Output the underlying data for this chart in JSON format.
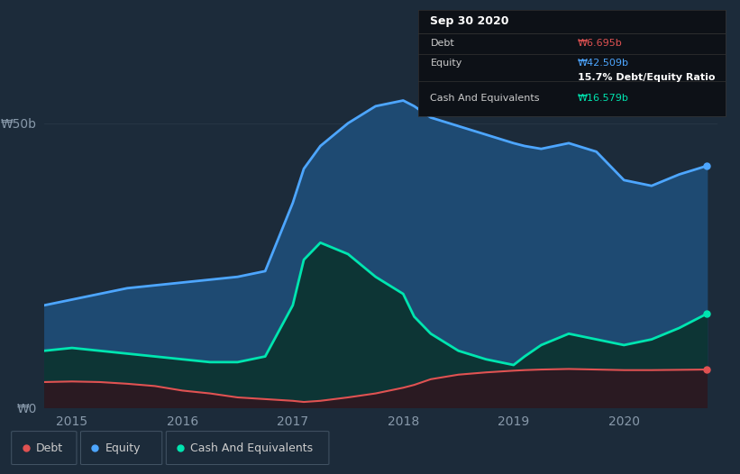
{
  "background_color": "#1c2b3a",
  "chart_bg_color": "#1c2b3a",
  "ylabel_50b": "₩50b",
  "ylabel_0": "₩0",
  "xlabel_ticks": [
    2015,
    2016,
    2017,
    2018,
    2019,
    2020
  ],
  "ylim": [
    0,
    60
  ],
  "tooltip": {
    "date": "Sep 30 2020",
    "debt_label": "Debt",
    "debt_value": "₩6.695b",
    "equity_label": "Equity",
    "equity_value": "₩42.509b",
    "ratio": "15.7% Debt/Equity Ratio",
    "cash_label": "Cash And Equivalents",
    "cash_value": "₩16.579b"
  },
  "legend": [
    {
      "label": "Debt",
      "color": "#e05252"
    },
    {
      "label": "Equity",
      "color": "#4da6ff"
    },
    {
      "label": "Cash And Equivalents",
      "color": "#00e5b0"
    }
  ],
  "equity_color": "#4da6ff",
  "equity_fill_color": "#1e4a72",
  "debt_color": "#e05252",
  "debt_fill_color": "#2a1a22",
  "cash_color": "#00e5b0",
  "cash_fill_color": "#0d3535",
  "grid_color": "#2a3a4a",
  "x": [
    2014.75,
    2015.0,
    2015.25,
    2015.5,
    2015.75,
    2016.0,
    2016.25,
    2016.5,
    2016.75,
    2017.0,
    2017.1,
    2017.25,
    2017.5,
    2017.75,
    2018.0,
    2018.1,
    2018.25,
    2018.5,
    2018.75,
    2019.0,
    2019.1,
    2019.25,
    2019.5,
    2019.75,
    2020.0,
    2020.25,
    2020.5,
    2020.75
  ],
  "equity": [
    18,
    19,
    20,
    21,
    21.5,
    22,
    22.5,
    23,
    24,
    36,
    42,
    46,
    50,
    53,
    54,
    53,
    51,
    49.5,
    48,
    46.5,
    46,
    45.5,
    46.5,
    45,
    40,
    39,
    41,
    42.5
  ],
  "cash": [
    10,
    10.5,
    10,
    9.5,
    9,
    8.5,
    8,
    8,
    9,
    18,
    26,
    29,
    27,
    23,
    20,
    16,
    13,
    10,
    8.5,
    7.5,
    9,
    11,
    13,
    12,
    11,
    12,
    14,
    16.5
  ],
  "debt": [
    4.5,
    4.6,
    4.5,
    4.2,
    3.8,
    3.0,
    2.5,
    1.8,
    1.5,
    1.2,
    1.0,
    1.2,
    1.8,
    2.5,
    3.5,
    4.0,
    5.0,
    5.8,
    6.2,
    6.5,
    6.6,
    6.7,
    6.8,
    6.7,
    6.6,
    6.6,
    6.65,
    6.7
  ]
}
